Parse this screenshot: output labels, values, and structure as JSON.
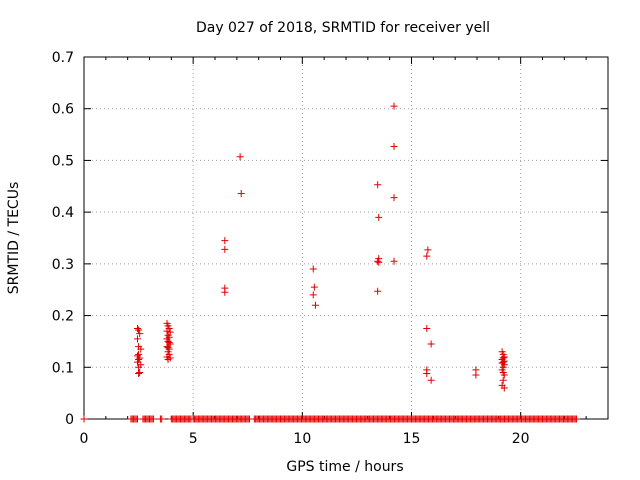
{
  "chart_data": {
    "type": "scatter",
    "title": "Day 027 of 2018, SRMTID for receiver yell",
    "xlabel": "GPS time / hours",
    "ylabel": "SRMTID / TECUs",
    "xlim": [
      0,
      24
    ],
    "ylim": [
      0,
      0.7
    ],
    "xticks": [
      0,
      5,
      10,
      15,
      20
    ],
    "yticks": [
      0,
      0.1,
      0.2,
      0.3,
      0.4,
      0.5,
      0.6,
      0.7
    ],
    "xtick_labels": [
      "0",
      "5",
      "10",
      "15",
      "20"
    ],
    "ytick_labels": [
      "0",
      "0.1",
      "0.2",
      "0.3",
      "0.4",
      "0.5",
      "0.6",
      "0.7"
    ],
    "grid": true,
    "marker": "+",
    "color": "#e00000",
    "zero_ranges": [
      [
        0,
        0
      ],
      [
        2.15,
        2.45
      ],
      [
        2.7,
        3.2
      ],
      [
        3.5,
        3.6
      ],
      [
        4.0,
        4.9
      ],
      [
        5.0,
        7.6
      ],
      [
        7.8,
        22.6
      ]
    ],
    "series": [
      {
        "name": "SRMTID",
        "x": [
          2.45,
          2.5,
          2.55,
          2.45,
          2.5,
          2.6,
          2.5,
          2.45,
          2.55,
          2.5,
          2.45,
          2.6,
          2.5,
          2.55,
          2.5,
          3.8,
          3.85,
          3.9,
          3.8,
          3.95,
          3.85,
          3.9,
          3.8,
          3.85,
          3.9,
          3.95,
          3.8,
          3.85,
          3.9,
          3.85,
          3.9,
          3.8,
          3.95,
          3.85,
          6.45,
          6.45,
          6.45,
          6.45,
          7.15,
          7.2,
          10.5,
          10.55,
          10.5,
          10.6,
          13.45,
          13.5,
          13.5,
          13.45,
          13.5,
          13.45,
          14.2,
          14.2,
          14.2,
          14.2,
          15.7,
          15.75,
          15.7,
          15.7,
          15.7,
          15.9,
          15.9,
          17.95,
          17.95,
          19.15,
          19.2,
          19.25,
          19.2,
          19.15,
          19.25,
          19.2,
          19.15,
          19.25,
          19.2,
          19.15,
          19.2,
          19.25,
          19.2,
          19.15,
          19.25
        ],
        "y": [
          0.175,
          0.172,
          0.165,
          0.155,
          0.14,
          0.135,
          0.125,
          0.122,
          0.118,
          0.115,
          0.11,
          0.105,
          0.1,
          0.09,
          0.088,
          0.185,
          0.18,
          0.175,
          0.17,
          0.168,
          0.162,
          0.158,
          0.155,
          0.15,
          0.148,
          0.145,
          0.14,
          0.138,
          0.135,
          0.13,
          0.125,
          0.12,
          0.118,
          0.115,
          0.345,
          0.328,
          0.253,
          0.245,
          0.507,
          0.436,
          0.29,
          0.255,
          0.24,
          0.22,
          0.453,
          0.39,
          0.31,
          0.305,
          0.303,
          0.247,
          0.605,
          0.527,
          0.428,
          0.305,
          0.315,
          0.327,
          0.175,
          0.095,
          0.088,
          0.145,
          0.075,
          0.095,
          0.085,
          0.13,
          0.125,
          0.12,
          0.118,
          0.115,
          0.112,
          0.11,
          0.108,
          0.105,
          0.1,
          0.095,
          0.09,
          0.085,
          0.075,
          0.065,
          0.06
        ]
      }
    ]
  }
}
